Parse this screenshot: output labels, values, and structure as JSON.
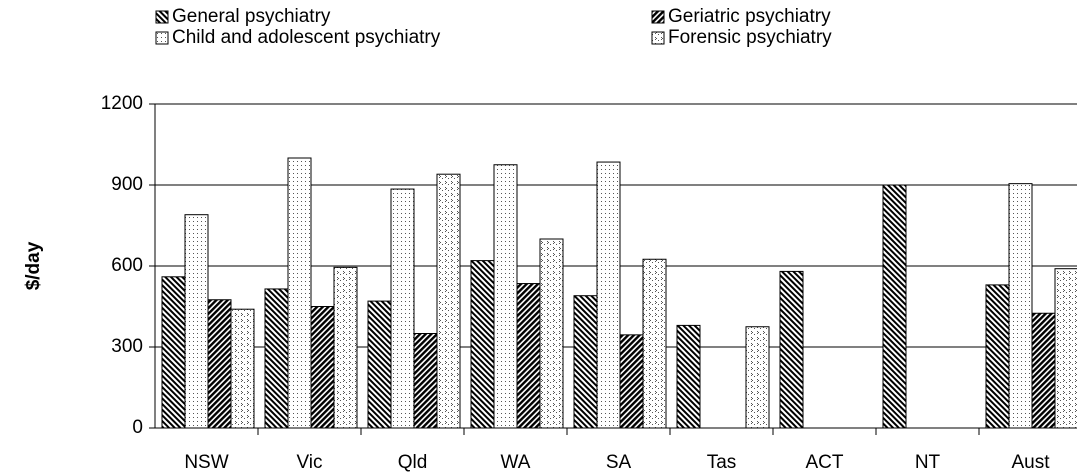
{
  "chart_data": {
    "type": "bar",
    "y_label": "$/day",
    "categories": [
      "NSW",
      "Vic",
      "Qld",
      "WA",
      "SA",
      "Tas",
      "ACT",
      "NT",
      "Aust"
    ],
    "series": [
      {
        "name": "General psychiatry",
        "pattern": "hatch-dense-back",
        "values": [
          560,
          515,
          470,
          620,
          490,
          380,
          580,
          900,
          530
        ]
      },
      {
        "name": "Geriatric psychiatry",
        "pattern": "hatch-dense-fwd",
        "values": [
          475,
          450,
          350,
          535,
          345,
          null,
          null,
          null,
          425
        ]
      },
      {
        "name": "Child and adolescent psychiatry",
        "pattern": "dots",
        "values": [
          790,
          1000,
          885,
          975,
          985,
          null,
          null,
          null,
          905
        ]
      },
      {
        "name": "Forensic psychiatry",
        "pattern": "chevron-dots",
        "values": [
          440,
          595,
          940,
          700,
          625,
          375,
          null,
          null,
          590
        ]
      }
    ],
    "bar_order": [
      0,
      2,
      1,
      3
    ],
    "ylim": [
      0,
      1200
    ],
    "yticks": [
      0,
      300,
      600,
      900,
      1200
    ],
    "grid": true
  }
}
